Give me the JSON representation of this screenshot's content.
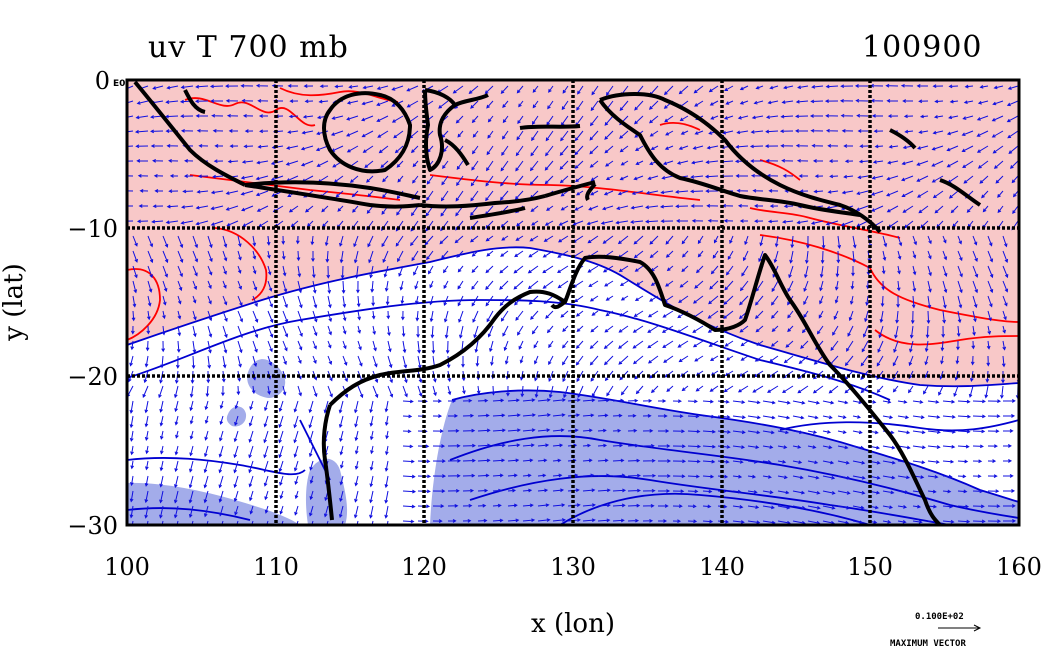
{
  "title_left": "uv T 700 mb",
  "title_right": "100900",
  "x_axis": {
    "label": "x (lon)",
    "ticks": [
      100,
      110,
      120,
      130,
      140,
      150,
      160
    ],
    "tick_labels": [
      "100",
      "110",
      "120",
      "130",
      "140",
      "150",
      "160"
    ]
  },
  "y_axis": {
    "label": "y (lat)",
    "ticks": [
      0,
      -10,
      -20,
      -30
    ],
    "tick_labels": [
      "0",
      "−10",
      "−20",
      "−30"
    ]
  },
  "corner_label": "E0",
  "reference_vector": {
    "value_label": "0.100E+02",
    "caption": "MAXIMUM VECTOR"
  },
  "colors": {
    "warm_fill": "#f8c8c8",
    "cold_fill": "#a3acea",
    "warm_contour": "#ff0000",
    "cold_contour": "#0000d0",
    "vectors": "#1010e0",
    "coast": "#000000"
  },
  "legend_layout": "bottom-right"
}
